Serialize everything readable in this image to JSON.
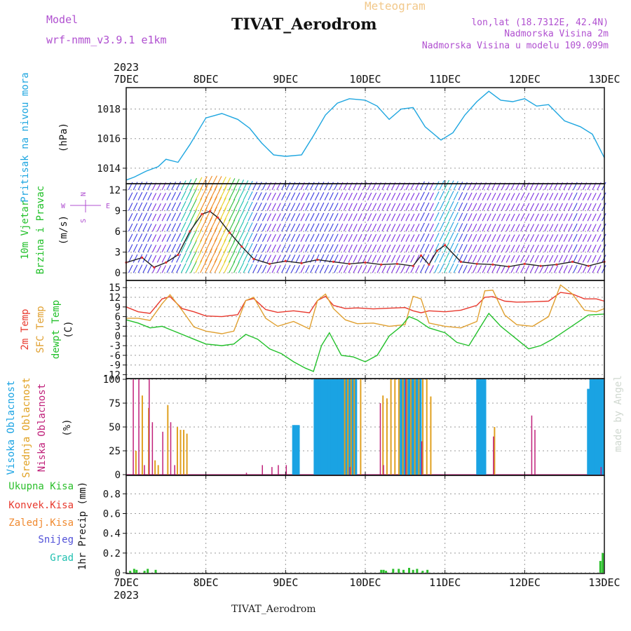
{
  "header": {
    "product": "Meteogram",
    "model_label": "Model",
    "model_name": "wrf-nmm_v3.9.1 e1km",
    "station": "TIVAT_Aerodrom",
    "lonlat": "lon,lat (18.7312E, 42.4N)",
    "elevation": "Nadmorska Visina 2m",
    "model_elevation": "Nadmorska Visina u modelu 109.099m",
    "watermark": "made by Angel",
    "footer": "TIVAT_Aerodrom"
  },
  "time_axis": {
    "year": "2023",
    "labels": [
      "7DEC",
      "8DEC",
      "9DEC",
      "10DEC",
      "11DEC",
      "12DEC",
      "13DEC"
    ]
  },
  "colors": {
    "pressure": "#1ea6e0",
    "temp_2m": "#e8392e",
    "temp_sfc": "#e0a030",
    "dewpoint": "#22c02a",
    "cloud_high": "#1aa3e3",
    "cloud_mid": "#e0a020",
    "cloud_low": "#c0207a",
    "precip_total": "#2bbf2b",
    "precip_conv": "#e8392e",
    "precip_frz": "#f08a30",
    "precip_snow": "#5050d8",
    "precip_grad": "#20c0b0",
    "model_color": "#b050d0"
  },
  "chart_data": [
    {
      "type": "line",
      "panel": "pressure",
      "title": "",
      "ylabel": [
        "Pritisak na nivou mora",
        "(hPa)"
      ],
      "ylim": [
        1013,
        1019.4
      ],
      "yticks": [
        1014,
        1016,
        1018
      ],
      "xlim": [
        0,
        6
      ],
      "grid": true,
      "series": [
        {
          "name": "Pritisak na nivou mora",
          "x": [
            0,
            0.1,
            0.25,
            0.4,
            0.5,
            0.65,
            0.8,
            1.0,
            1.2,
            1.4,
            1.55,
            1.7,
            1.85,
            2.0,
            2.2,
            2.35,
            2.5,
            2.65,
            2.8,
            3.0,
            3.15,
            3.3,
            3.45,
            3.6,
            3.75,
            3.95,
            4.1,
            4.25,
            4.4,
            4.55,
            4.7,
            4.85,
            5.0,
            5.15,
            5.3,
            5.5,
            5.7,
            5.85,
            6.0
          ],
          "y": [
            1013.2,
            1013.4,
            1013.8,
            1014.1,
            1014.6,
            1014.4,
            1015.6,
            1017.4,
            1017.7,
            1017.3,
            1016.7,
            1015.7,
            1014.9,
            1014.8,
            1014.9,
            1016.2,
            1017.6,
            1018.4,
            1018.7,
            1018.6,
            1018.2,
            1017.3,
            1018.0,
            1018.1,
            1016.8,
            1015.9,
            1016.4,
            1017.6,
            1018.5,
            1019.2,
            1018.6,
            1018.5,
            1018.7,
            1018.2,
            1018.3,
            1017.2,
            1016.8,
            1016.3,
            1014.7
          ]
        }
      ]
    },
    {
      "type": "line",
      "panel": "wind",
      "title": "",
      "ylabel": [
        "10m Vjetar",
        "Brzina i Pravac",
        "(m/s)"
      ],
      "compass": [
        "N",
        "W",
        "E",
        "S"
      ],
      "ylim": [
        -1,
        12.8
      ],
      "yticks": [
        0,
        3,
        6,
        9,
        12
      ],
      "xlim": [
        0,
        6
      ],
      "grid": true,
      "series": [
        {
          "name": "Brzina",
          "x": [
            0,
            0.2,
            0.35,
            0.5,
            0.65,
            0.8,
            0.95,
            1.05,
            1.15,
            1.3,
            1.45,
            1.6,
            1.8,
            2.0,
            2.2,
            2.4,
            2.6,
            2.8,
            3.0,
            3.2,
            3.4,
            3.6,
            3.7,
            3.8,
            3.9,
            4.0,
            4.2,
            4.4,
            4.6,
            4.8,
            5.0,
            5.2,
            5.4,
            5.6,
            5.8,
            6.0
          ],
          "y": [
            1.5,
            2.2,
            0.8,
            1.5,
            2.6,
            6.0,
            8.5,
            8.9,
            8.0,
            5.8,
            3.8,
            2.0,
            1.3,
            1.7,
            1.4,
            1.9,
            1.6,
            1.3,
            1.5,
            1.2,
            1.3,
            1.0,
            2.5,
            1.2,
            3.2,
            4.0,
            1.6,
            1.3,
            1.2,
            0.9,
            1.3,
            1.0,
            1.2,
            1.6,
            1.0,
            1.6
          ]
        }
      ]
    },
    {
      "type": "line",
      "panel": "temperature",
      "title": "",
      "ylabel": [
        "2m Temp",
        "SFC Temp",
        "dewpt Temp",
        "(C)"
      ],
      "ylim": [
        -13,
        17
      ],
      "yticks": [
        -12,
        -9,
        -6,
        -3,
        0,
        3,
        6,
        9,
        12,
        15
      ],
      "xlim": [
        0,
        6
      ],
      "grid": true,
      "series": [
        {
          "name": "2m Temp",
          "x": [
            0,
            0.15,
            0.3,
            0.45,
            0.55,
            0.7,
            0.85,
            1.0,
            1.2,
            1.4,
            1.5,
            1.6,
            1.75,
            1.9,
            2.1,
            2.3,
            2.4,
            2.5,
            2.6,
            2.75,
            2.9,
            3.1,
            3.3,
            3.5,
            3.6,
            3.7,
            3.8,
            4.0,
            4.2,
            4.4,
            4.5,
            4.6,
            4.75,
            4.9,
            5.1,
            5.3,
            5.45,
            5.6,
            5.75,
            5.9,
            6.0
          ],
          "y": [
            9,
            7.5,
            7,
            11.5,
            12.2,
            8.5,
            7.5,
            6.2,
            6.0,
            6.6,
            11,
            11.6,
            8.2,
            7.3,
            7.8,
            7.2,
            11,
            12.3,
            9.5,
            8.5,
            8.7,
            8.4,
            8.6,
            8.8,
            7.8,
            7.2,
            7.8,
            7.5,
            8.0,
            9.5,
            12,
            12.2,
            10.8,
            10.5,
            10.6,
            10.8,
            13.5,
            13.0,
            11.5,
            11.5,
            10.8
          ]
        },
        {
          "name": "SFC Temp",
          "x": [
            0,
            0.15,
            0.3,
            0.45,
            0.55,
            0.7,
            0.85,
            1.0,
            1.2,
            1.35,
            1.5,
            1.6,
            1.75,
            1.9,
            2.1,
            2.3,
            2.4,
            2.5,
            2.6,
            2.75,
            2.9,
            3.1,
            3.3,
            3.5,
            3.6,
            3.7,
            3.8,
            4.0,
            4.2,
            4.4,
            4.5,
            4.6,
            4.75,
            4.9,
            5.1,
            5.3,
            5.45,
            5.6,
            5.75,
            5.9,
            6.0
          ],
          "y": [
            5.5,
            5.5,
            4.8,
            10,
            12.8,
            8,
            2.8,
            1.5,
            0.7,
            1.5,
            11,
            12,
            5.5,
            3.0,
            4.5,
            2.2,
            11,
            13,
            8.5,
            5.0,
            3.8,
            4.0,
            3.0,
            3.5,
            12.3,
            11.5,
            4.0,
            3.0,
            2.5,
            4.5,
            14,
            14.2,
            6.5,
            3.5,
            3.0,
            6.0,
            15.8,
            13,
            8,
            7.5,
            8.5
          ]
        },
        {
          "name": "dewpt Temp",
          "x": [
            0,
            0.15,
            0.3,
            0.45,
            0.55,
            0.7,
            0.85,
            1.0,
            1.2,
            1.35,
            1.5,
            1.65,
            1.8,
            1.95,
            2.1,
            2.25,
            2.35,
            2.45,
            2.55,
            2.7,
            2.85,
            3.0,
            3.15,
            3.3,
            3.45,
            3.55,
            3.65,
            3.8,
            4.0,
            4.15,
            4.3,
            4.45,
            4.55,
            4.7,
            4.9,
            5.05,
            5.2,
            5.35,
            5.5,
            5.65,
            5.8,
            6.0
          ],
          "y": [
            5,
            4,
            2.5,
            3.0,
            2.0,
            0.5,
            -1,
            -2.5,
            -3,
            -2.5,
            0.5,
            -1,
            -4,
            -5.5,
            -8,
            -10,
            -11,
            -3,
            1,
            -6,
            -6.5,
            -8,
            -6,
            0,
            3,
            6,
            5,
            2.5,
            1,
            -2,
            -3,
            3,
            7,
            3,
            -1,
            -4,
            -3,
            -1,
            1.5,
            4,
            6.5,
            6.8
          ]
        }
      ]
    },
    {
      "type": "bar",
      "panel": "clouds",
      "title": "",
      "ylabel": [
        "Visoka Oblacnost",
        "Srednja Oblacnost",
        "Niska Oblacnost",
        "(%)"
      ],
      "ylim": [
        0,
        100
      ],
      "yticks": [
        0,
        25,
        50,
        75,
        100
      ],
      "xlim": [
        0,
        6
      ],
      "grid": true,
      "series": [
        {
          "name": "Visoka Oblacnost",
          "x": [
            2.1,
            2.13,
            2.16,
            2.37,
            2.4,
            2.43,
            2.46,
            2.49,
            2.52,
            2.55,
            2.58,
            2.61,
            2.64,
            2.67,
            2.7,
            2.73,
            2.76,
            2.79,
            2.82,
            2.85,
            2.88,
            3.45,
            3.48,
            3.51,
            3.54,
            3.57,
            3.6,
            3.63,
            3.66,
            3.69,
            4.41,
            4.44,
            4.47,
            4.5,
            5.8,
            5.83,
            5.86,
            5.89,
            5.92,
            5.95,
            5.98
          ],
          "y": [
            52,
            52,
            52,
            100,
            100,
            100,
            100,
            100,
            100,
            100,
            100,
            100,
            100,
            100,
            100,
            100,
            100,
            100,
            100,
            100,
            100,
            100,
            100,
            100,
            100,
            100,
            100,
            100,
            100,
            100,
            100,
            100,
            100,
            100,
            90,
            100,
            100,
            100,
            100,
            100,
            100
          ]
        },
        {
          "name": "Srednja Oblacnost",
          "x": [
            0.1,
            0.18,
            0.26,
            0.34,
            0.38,
            0.5,
            0.62,
            0.66,
            0.7,
            0.74,
            2.72,
            2.76,
            2.8,
            2.84,
            2.92,
            3.2,
            3.25,
            3.3,
            3.35,
            3.4,
            3.45,
            3.5,
            3.55,
            3.6,
            3.65,
            3.7,
            3.75,
            3.8,
            4.6
          ],
          "y": [
            25,
            83,
            70,
            15,
            10,
            73,
            50,
            47,
            47,
            43,
            100,
            100,
            100,
            100,
            100,
            83,
            80,
            100,
            100,
            100,
            100,
            100,
            100,
            100,
            100,
            100,
            100,
            82,
            50
          ]
        },
        {
          "name": "Niska Oblacnost",
          "x": [
            0.08,
            0.15,
            0.22,
            0.28,
            0.32,
            0.45,
            0.55,
            0.6,
            1.5,
            1.7,
            1.82,
            1.9,
            2.0,
            2.8,
            3.18,
            3.22,
            3.5,
            3.7,
            4.6,
            5.08,
            5.12,
            5.95
          ],
          "y": [
            100,
            100,
            10,
            100,
            55,
            45,
            55,
            10,
            2,
            10,
            8,
            10,
            10,
            8,
            75,
            10,
            100,
            35,
            40,
            62,
            47,
            8
          ]
        }
      ]
    },
    {
      "type": "bar",
      "panel": "precipitation",
      "title": "",
      "ylabel": [
        "1hr Precip (mm)"
      ],
      "legend": [
        "Ukupna Kisa",
        "Konvek.Kisa",
        "Zaledj.Kisa",
        "Snijeg",
        "Grad"
      ],
      "ylim": [
        0,
        0.98
      ],
      "yticks": [
        0,
        0.2,
        0.4,
        0.6,
        0.8
      ],
      "xlim": [
        0,
        6
      ],
      "grid": true,
      "series": [
        {
          "name": "Ukupna Kisa",
          "x": [
            0.05,
            0.1,
            0.13,
            0.23,
            0.27,
            0.37,
            3.2,
            3.23,
            3.26,
            3.35,
            3.42,
            3.48,
            3.55,
            3.6,
            3.65,
            3.72,
            3.78,
            5.95,
            5.98
          ],
          "y": [
            0.02,
            0.04,
            0.03,
            0.02,
            0.04,
            0.03,
            0.03,
            0.03,
            0.02,
            0.04,
            0.04,
            0.03,
            0.05,
            0.03,
            0.04,
            0.02,
            0.03,
            0.12,
            0.2
          ]
        }
      ]
    }
  ]
}
